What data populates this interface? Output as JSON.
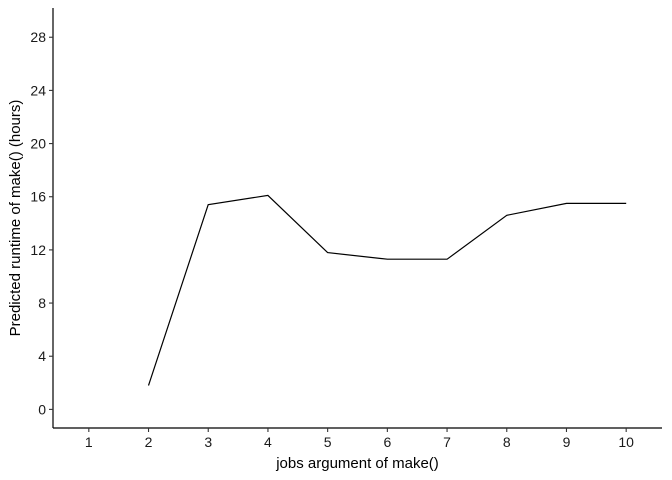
{
  "chart_data": {
    "type": "line",
    "title": "",
    "xlabel": "jobs argument of make()",
    "ylabel": "Predicted runtime of make() (hours)",
    "xlim": [
      0.4,
      10.6
    ],
    "ylim": [
      -1.4,
      30.2
    ],
    "x_ticks": [
      1,
      2,
      3,
      4,
      5,
      6,
      7,
      8,
      9,
      10
    ],
    "y_ticks": [
      0,
      4,
      8,
      12,
      16,
      20,
      24,
      28
    ],
    "grid": false,
    "legend": "none",
    "series": [
      {
        "x": [
          2,
          3,
          4,
          5,
          6,
          7,
          8,
          9,
          10
        ],
        "y": [
          1.8,
          15.4,
          16.1,
          11.8,
          11.3,
          11.3,
          14.6,
          15.5,
          15.5
        ],
        "color": "#000000"
      }
    ]
  }
}
